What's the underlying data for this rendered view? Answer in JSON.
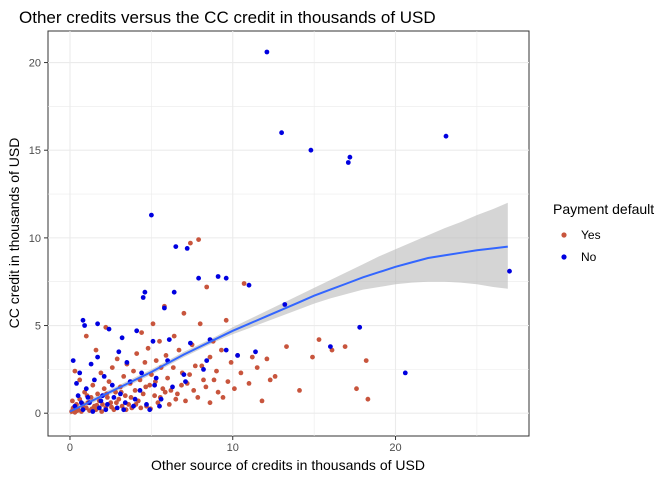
{
  "chart_data": {
    "type": "scatter",
    "title": "Other credits versus the CC credit in thousands of USD",
    "xlabel": "Other source of credits in thousands of USD",
    "ylabel": "CC credit in thousands of USD",
    "xlim": [
      -1.35,
      28.2
    ],
    "ylim": [
      -1.3,
      21.8
    ],
    "x_ticks": [
      0,
      10,
      20
    ],
    "x_tick_labels": [
      "0",
      "10",
      "20"
    ],
    "y_ticks": [
      0,
      5,
      10,
      15,
      20
    ],
    "y_tick_labels": [
      "0",
      "5",
      "10",
      "15",
      "20"
    ],
    "grid": true,
    "legend": {
      "title": "Payment default",
      "position": "right",
      "entries": [
        {
          "label": "Yes",
          "color": "#c8553d"
        },
        {
          "label": "No",
          "color": "#0000e0"
        }
      ]
    },
    "series": [
      {
        "name": "Yes",
        "color": "#c8553d",
        "points": [
          [
            0.1,
            0.1
          ],
          [
            0.2,
            0.3
          ],
          [
            0.3,
            0.05
          ],
          [
            0.4,
            0.5
          ],
          [
            0.5,
            0.2
          ],
          [
            0.6,
            0.8
          ],
          [
            0.7,
            0.1
          ],
          [
            0.8,
            0.4
          ],
          [
            0.9,
            1.2
          ],
          [
            1.0,
            0.3
          ],
          [
            1.1,
            0.6
          ],
          [
            1.2,
            0.15
          ],
          [
            1.3,
            0.9
          ],
          [
            1.4,
            1.6
          ],
          [
            1.5,
            0.4
          ],
          [
            1.6,
            0.2
          ],
          [
            1.7,
            1.1
          ],
          [
            1.8,
            0.7
          ],
          [
            1.9,
            2.3
          ],
          [
            2.0,
            0.5
          ],
          [
            2.1,
            1.4
          ],
          [
            2.2,
            0.3
          ],
          [
            2.3,
            0.9
          ],
          [
            2.4,
            1.8
          ],
          [
            2.5,
            0.6
          ],
          [
            2.6,
            2.6
          ],
          [
            2.7,
            0.2
          ],
          [
            2.8,
            1.2
          ],
          [
            2.9,
            3.1
          ],
          [
            3.0,
            0.8
          ],
          [
            3.1,
            1.5
          ],
          [
            3.2,
            0.4
          ],
          [
            3.3,
            2.1
          ],
          [
            3.4,
            1.0
          ],
          [
            3.5,
            2.8
          ],
          [
            3.6,
            0.5
          ],
          [
            3.7,
            1.7
          ],
          [
            3.8,
            0.3
          ],
          [
            3.9,
            2.4
          ],
          [
            4.0,
            1.3
          ],
          [
            4.1,
            3.4
          ],
          [
            4.2,
            0.7
          ],
          [
            4.3,
            1.9
          ],
          [
            4.4,
            4.6
          ],
          [
            4.5,
            1.1
          ],
          [
            4.6,
            2.9
          ],
          [
            4.7,
            0.4
          ],
          [
            4.8,
            3.7
          ],
          [
            4.9,
            1.6
          ],
          [
            5.0,
            2.2
          ],
          [
            5.1,
            5.1
          ],
          [
            5.2,
            1.0
          ],
          [
            5.3,
            3.0
          ],
          [
            5.4,
            0.6
          ],
          [
            5.5,
            4.1
          ],
          [
            5.6,
            2.6
          ],
          [
            5.7,
            1.4
          ],
          [
            5.8,
            6.1
          ],
          [
            5.9,
            3.3
          ],
          [
            6.0,
            2.0
          ],
          [
            6.2,
            1.3
          ],
          [
            6.4,
            4.4
          ],
          [
            6.5,
            0.8
          ],
          [
            6.7,
            3.6
          ],
          [
            6.9,
            2.3
          ],
          [
            7.0,
            5.7
          ],
          [
            7.2,
            1.7
          ],
          [
            7.4,
            9.7
          ],
          [
            7.5,
            3.9
          ],
          [
            7.7,
            2.7
          ],
          [
            7.9,
            9.9
          ],
          [
            8.0,
            5.1
          ],
          [
            8.2,
            1.9
          ],
          [
            8.4,
            7.2
          ],
          [
            8.6,
            3.2
          ],
          [
            8.8,
            4.1
          ],
          [
            9.0,
            2.4
          ],
          [
            9.3,
            3.6
          ],
          [
            9.6,
            5.3
          ],
          [
            9.9,
            2.9
          ],
          [
            10.3,
            3.3
          ],
          [
            10.7,
            7.4
          ],
          [
            11.2,
            3.2
          ],
          [
            11.8,
            0.7
          ],
          [
            12.1,
            3.1
          ],
          [
            12.6,
            2.1
          ],
          [
            13.3,
            3.8
          ],
          [
            14.1,
            1.3
          ],
          [
            14.9,
            3.2
          ],
          [
            15.3,
            4.2
          ],
          [
            16.1,
            3.6
          ],
          [
            16.9,
            3.8
          ],
          [
            17.6,
            1.4
          ],
          [
            18.2,
            3.0
          ],
          [
            18.3,
            0.8
          ],
          [
            0.3,
            2.4
          ],
          [
            0.6,
            1.9
          ],
          [
            1.0,
            4.4
          ],
          [
            1.6,
            3.6
          ],
          [
            2.2,
            4.9
          ],
          [
            0.15,
            0.7
          ],
          [
            0.45,
            0.15
          ],
          [
            0.75,
            0.55
          ],
          [
            1.05,
            1.0
          ],
          [
            1.35,
            0.25
          ],
          [
            1.65,
            0.45
          ],
          [
            1.95,
            0.1
          ],
          [
            2.25,
            1.1
          ],
          [
            2.55,
            0.35
          ],
          [
            2.85,
            0.6
          ],
          [
            3.15,
            1.2
          ],
          [
            3.45,
            0.2
          ],
          [
            3.75,
            0.9
          ],
          [
            4.05,
            0.5
          ],
          [
            4.35,
            0.3
          ],
          [
            4.65,
            1.5
          ],
          [
            4.95,
            0.25
          ],
          [
            5.25,
            1.8
          ],
          [
            5.55,
            0.9
          ],
          [
            5.85,
            1.2
          ],
          [
            6.1,
            0.5
          ],
          [
            6.35,
            2.6
          ],
          [
            6.6,
            1.1
          ],
          [
            6.85,
            1.6
          ],
          [
            7.1,
            0.7
          ],
          [
            7.35,
            2.2
          ],
          [
            7.6,
            1.3
          ],
          [
            7.85,
            0.9
          ],
          [
            8.1,
            2.7
          ],
          [
            8.35,
            1.5
          ],
          [
            8.6,
            0.6
          ],
          [
            8.85,
            1.9
          ],
          [
            9.1,
            1.2
          ],
          [
            9.4,
            0.9
          ],
          [
            9.7,
            1.8
          ],
          [
            10.1,
            1.4
          ],
          [
            10.5,
            2.3
          ],
          [
            11.0,
            1.7
          ],
          [
            11.5,
            2.6
          ],
          [
            12.3,
            1.9
          ]
        ]
      },
      {
        "name": "No",
        "color": "#0000e0",
        "points": [
          [
            12.1,
            20.6
          ],
          [
            13.0,
            16.0
          ],
          [
            14.8,
            15.0
          ],
          [
            17.2,
            14.6
          ],
          [
            17.1,
            14.3
          ],
          [
            23.1,
            15.8
          ],
          [
            5.0,
            11.3
          ],
          [
            6.5,
            9.5
          ],
          [
            7.2,
            9.4
          ],
          [
            9.1,
            7.8
          ],
          [
            9.6,
            7.7
          ],
          [
            7.9,
            7.7
          ],
          [
            11.0,
            7.3
          ],
          [
            4.6,
            6.9
          ],
          [
            6.4,
            6.9
          ],
          [
            13.2,
            6.2
          ],
          [
            4.5,
            6.6
          ],
          [
            5.8,
            6.0
          ],
          [
            17.8,
            4.9
          ],
          [
            16.0,
            3.8
          ],
          [
            20.6,
            2.3
          ],
          [
            27.0,
            8.1
          ],
          [
            0.8,
            5.3
          ],
          [
            0.9,
            5.0
          ],
          [
            1.7,
            5.1
          ],
          [
            2.4,
            4.8
          ],
          [
            3.2,
            4.3
          ],
          [
            4.1,
            4.7
          ],
          [
            5.1,
            4.1
          ],
          [
            6.1,
            4.2
          ],
          [
            7.4,
            4.0
          ],
          [
            8.6,
            4.2
          ],
          [
            0.2,
            3.0
          ],
          [
            0.6,
            2.3
          ],
          [
            1.3,
            2.8
          ],
          [
            1.7,
            3.2
          ],
          [
            2.1,
            2.1
          ],
          [
            3.0,
            3.5
          ],
          [
            3.5,
            2.9
          ],
          [
            4.4,
            2.3
          ],
          [
            5.3,
            2.0
          ],
          [
            6.0,
            3.0
          ],
          [
            7.0,
            2.2
          ],
          [
            8.2,
            2.5
          ],
          [
            8.4,
            3.0
          ],
          [
            9.6,
            3.6
          ],
          [
            10.3,
            3.3
          ],
          [
            11.4,
            3.5
          ],
          [
            0.3,
            0.4
          ],
          [
            0.5,
            1.0
          ],
          [
            0.8,
            0.2
          ],
          [
            1.0,
            1.4
          ],
          [
            1.2,
            0.6
          ],
          [
            1.5,
            1.9
          ],
          [
            1.8,
            0.3
          ],
          [
            2.0,
            1.0
          ],
          [
            2.3,
            0.5
          ],
          [
            2.6,
            1.6
          ],
          [
            2.9,
            0.3
          ],
          [
            3.1,
            1.1
          ],
          [
            3.4,
            0.6
          ],
          [
            3.7,
            1.8
          ],
          [
            4.0,
            0.8
          ],
          [
            4.3,
            1.3
          ],
          [
            4.7,
            0.5
          ],
          [
            5.2,
            1.6
          ],
          [
            5.6,
            0.8
          ],
          [
            6.3,
            1.5
          ],
          [
            7.1,
            1.8
          ],
          [
            0.4,
            1.7
          ],
          [
            0.7,
            0.6
          ],
          [
            1.1,
            0.9
          ],
          [
            1.4,
            0.1
          ],
          [
            1.9,
            0.7
          ],
          [
            2.2,
            0.2
          ],
          [
            2.7,
            0.9
          ],
          [
            3.3,
            0.2
          ],
          [
            3.9,
            0.4
          ],
          [
            4.9,
            0.2
          ],
          [
            5.5,
            0.4
          ]
        ]
      }
    ],
    "smooth_fit": {
      "color": "#3366ff",
      "ribbon_color": "#b3b3b3",
      "line": [
        [
          0,
          0.1
        ],
        [
          1,
          0.55
        ],
        [
          2,
          1.0
        ],
        [
          3,
          1.45
        ],
        [
          4,
          1.9
        ],
        [
          5,
          2.35
        ],
        [
          6,
          2.85
        ],
        [
          7,
          3.35
        ],
        [
          8,
          3.8
        ],
        [
          9,
          4.25
        ],
        [
          10,
          4.7
        ],
        [
          11,
          5.1
        ],
        [
          12,
          5.5
        ],
        [
          13,
          5.9
        ],
        [
          14,
          6.3
        ],
        [
          15,
          6.7
        ],
        [
          16,
          7.05
        ],
        [
          17,
          7.4
        ],
        [
          18,
          7.75
        ],
        [
          19,
          8.05
        ],
        [
          20,
          8.35
        ],
        [
          21,
          8.6
        ],
        [
          22,
          8.85
        ],
        [
          23,
          9.0
        ],
        [
          24,
          9.15
        ],
        [
          25,
          9.3
        ],
        [
          26,
          9.4
        ],
        [
          26.9,
          9.5
        ]
      ],
      "upper": [
        [
          0,
          0.3
        ],
        [
          1,
          0.7
        ],
        [
          2,
          1.15
        ],
        [
          3,
          1.6
        ],
        [
          4,
          2.05
        ],
        [
          5,
          2.5
        ],
        [
          6,
          3.0
        ],
        [
          7,
          3.5
        ],
        [
          8,
          3.95
        ],
        [
          9,
          4.4
        ],
        [
          10,
          4.9
        ],
        [
          11,
          5.35
        ],
        [
          12,
          5.8
        ],
        [
          13,
          6.25
        ],
        [
          14,
          6.7
        ],
        [
          15,
          7.15
        ],
        [
          16,
          7.6
        ],
        [
          17,
          8.05
        ],
        [
          18,
          8.5
        ],
        [
          19,
          8.95
        ],
        [
          20,
          9.35
        ],
        [
          21,
          9.75
        ],
        [
          22,
          10.15
        ],
        [
          23,
          10.55
        ],
        [
          24,
          10.9
        ],
        [
          25,
          11.3
        ],
        [
          26,
          11.65
        ],
        [
          26.9,
          12.0
        ]
      ],
      "lower": [
        [
          0,
          -0.1
        ],
        [
          1,
          0.4
        ],
        [
          2,
          0.85
        ],
        [
          3,
          1.3
        ],
        [
          4,
          1.75
        ],
        [
          5,
          2.2
        ],
        [
          6,
          2.7
        ],
        [
          7,
          3.2
        ],
        [
          8,
          3.65
        ],
        [
          9,
          4.1
        ],
        [
          10,
          4.5
        ],
        [
          11,
          4.85
        ],
        [
          12,
          5.2
        ],
        [
          13,
          5.55
        ],
        [
          14,
          5.9
        ],
        [
          15,
          6.25
        ],
        [
          16,
          6.55
        ],
        [
          17,
          6.8
        ],
        [
          18,
          7.05
        ],
        [
          19,
          7.2
        ],
        [
          20,
          7.35
        ],
        [
          21,
          7.45
        ],
        [
          22,
          7.5
        ],
        [
          23,
          7.5
        ],
        [
          24,
          7.45
        ],
        [
          25,
          7.35
        ],
        [
          26,
          7.2
        ],
        [
          26.9,
          7.1
        ]
      ]
    }
  }
}
